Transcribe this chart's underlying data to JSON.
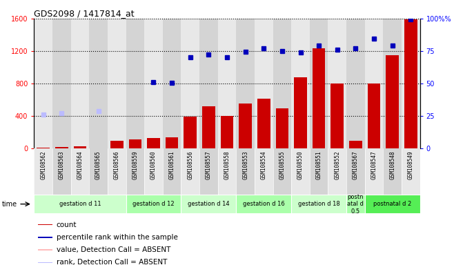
{
  "title": "GDS2098 / 1417814_at",
  "samples": [
    "GSM108562",
    "GSM108563",
    "GSM108564",
    "GSM108565",
    "GSM108566",
    "GSM108559",
    "GSM108560",
    "GSM108561",
    "GSM108556",
    "GSM108557",
    "GSM108558",
    "GSM108553",
    "GSM108554",
    "GSM108555",
    "GSM108550",
    "GSM108551",
    "GSM108552",
    "GSM108567",
    "GSM108547",
    "GSM108548",
    "GSM108549"
  ],
  "bar_values": [
    8,
    15,
    25,
    3,
    95,
    115,
    130,
    140,
    390,
    520,
    400,
    555,
    615,
    495,
    880,
    1230,
    800,
    90,
    800,
    1150,
    1590
  ],
  "bar_absent": [
    false,
    false,
    false,
    false,
    false,
    false,
    false,
    false,
    false,
    false,
    false,
    false,
    false,
    false,
    false,
    false,
    false,
    false,
    false,
    false,
    false
  ],
  "dot_values": [
    420,
    430,
    null,
    460,
    null,
    null,
    820,
    805,
    1120,
    1160,
    1120,
    1195,
    1230,
    1200,
    1185,
    1265,
    1215,
    1230,
    1350,
    1270,
    1590
  ],
  "dot_absent": [
    true,
    true,
    false,
    true,
    false,
    false,
    false,
    false,
    false,
    false,
    false,
    false,
    false,
    false,
    false,
    false,
    false,
    false,
    false,
    false,
    false
  ],
  "absent_bar_values": [
    null,
    null,
    null,
    null,
    null,
    null,
    null,
    null,
    null,
    null,
    null,
    null,
    null,
    null,
    null,
    null,
    null,
    null,
    null,
    null,
    null
  ],
  "groups": [
    {
      "label": "gestation d 11",
      "start": 0,
      "end": 5,
      "color": "#ccffcc"
    },
    {
      "label": "gestation d 12",
      "start": 5,
      "end": 8,
      "color": "#aaffaa"
    },
    {
      "label": "gestation d 14",
      "start": 8,
      "end": 11,
      "color": "#ccffcc"
    },
    {
      "label": "gestation d 16",
      "start": 11,
      "end": 14,
      "color": "#aaffaa"
    },
    {
      "label": "gestation d 18",
      "start": 14,
      "end": 17,
      "color": "#ccffcc"
    },
    {
      "label": "postn\natal d\n0.5",
      "start": 17,
      "end": 18,
      "color": "#aaffaa"
    },
    {
      "label": "postnatal d 2",
      "start": 18,
      "end": 21,
      "color": "#55ee55"
    }
  ],
  "ylim_left": [
    0,
    1600
  ],
  "ylim_right": [
    0,
    100
  ],
  "yticks_left": [
    0,
    400,
    800,
    1200,
    1600
  ],
  "yticks_right": [
    0,
    25,
    50,
    75,
    100
  ],
  "bar_color": "#cc0000",
  "dot_color": "#0000bb",
  "absent_bar_color": "#ffbbbb",
  "absent_dot_color": "#bbbbff",
  "bg_col_even": "#e8e8e8",
  "bg_col_odd": "#d4d4d4",
  "legend_items": [
    {
      "label": "count",
      "color": "#cc0000"
    },
    {
      "label": "percentile rank within the sample",
      "color": "#0000bb"
    },
    {
      "label": "value, Detection Call = ABSENT",
      "color": "#ffbbbb"
    },
    {
      "label": "rank, Detection Call = ABSENT",
      "color": "#bbbbff"
    }
  ]
}
